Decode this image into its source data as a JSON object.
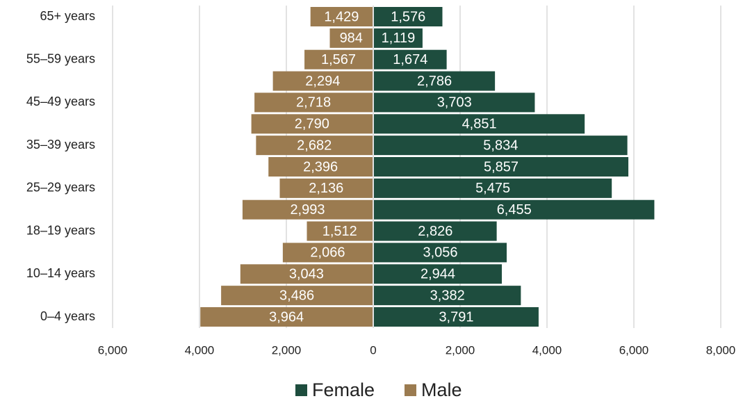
{
  "chart_data": {
    "type": "pyramid",
    "categories": [
      "65+ years",
      null,
      "55–59 years",
      null,
      "45–49 years",
      null,
      "35–39 years",
      null,
      "25–29 years",
      null,
      "18–19 years",
      null,
      "10–14 years",
      null,
      "0–4 years"
    ],
    "series": [
      {
        "name": "Female",
        "color": "#1e4d3e",
        "values": [
          1576,
          1119,
          1674,
          2786,
          3703,
          4851,
          5834,
          5857,
          5475,
          6455,
          2826,
          3056,
          2944,
          3382,
          3791
        ],
        "value_labels": [
          "1,576",
          "1,119",
          "1,674",
          "2,786",
          "3,703",
          "4,851",
          "5,834",
          "5,857",
          "5,475",
          "6,455",
          "2,826",
          "3,056",
          "2,944",
          "3,382",
          "3,791"
        ]
      },
      {
        "name": "Male",
        "color": "#9b7b50",
        "values": [
          1429,
          984,
          1567,
          2294,
          2718,
          2790,
          2682,
          2396,
          2136,
          2993,
          1512,
          2066,
          3043,
          3486,
          3964
        ],
        "value_labels": [
          "1,429",
          "984",
          "1,567",
          "2,294",
          "2,718",
          "2,790",
          "2,682",
          "2,396",
          "2,136",
          "2,993",
          "1,512",
          "2,066",
          "3,043",
          "3,486",
          "3,964"
        ]
      }
    ],
    "xlim": [
      -6000,
      8000
    ],
    "xticks": [
      {
        "value": -6000,
        "label": "6,000"
      },
      {
        "value": -4000,
        "label": "4,000"
      },
      {
        "value": -2000,
        "label": "2,000"
      },
      0,
      {
        "value": 2000,
        "label": "2,000"
      },
      {
        "value": 4000,
        "label": "4,000"
      },
      {
        "value": 6000,
        "label": "6,000"
      },
      {
        "value": 8000,
        "label": "8,000"
      }
    ],
    "grid": true,
    "legend": "bottom"
  }
}
